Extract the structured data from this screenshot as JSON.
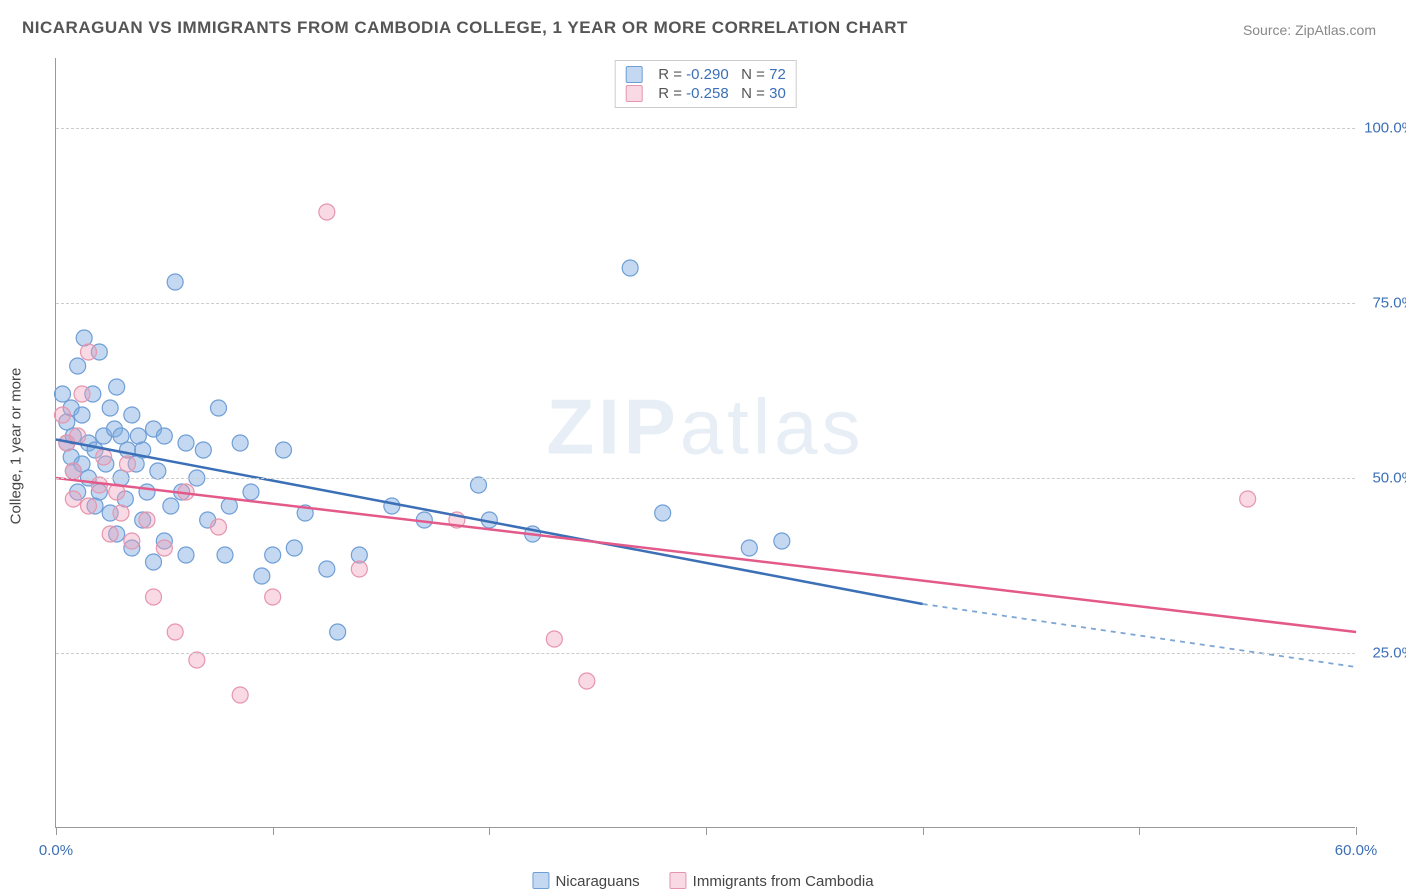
{
  "title": "NICARAGUAN VS IMMIGRANTS FROM CAMBODIA COLLEGE, 1 YEAR OR MORE CORRELATION CHART",
  "source": "Source: ZipAtlas.com",
  "ylabel": "College, 1 year or more",
  "watermark_prefix": "ZIP",
  "watermark_suffix": "atlas",
  "chart": {
    "type": "scatter",
    "xlim": [
      0,
      60
    ],
    "ylim": [
      0,
      110
    ],
    "xticks": [
      0,
      10,
      20,
      30,
      40,
      50,
      60
    ],
    "xtick_labels": [
      "0.0%",
      "",
      "",
      "",
      "",
      "",
      "60.0%"
    ],
    "gridlines_y": [
      25,
      50,
      75,
      100
    ],
    "ytick_labels": [
      "25.0%",
      "50.0%",
      "75.0%",
      "100.0%"
    ],
    "background_color": "#ffffff",
    "grid_color": "#cccccc",
    "grid_dash": "4,4",
    "axis_color": "#999999",
    "series": [
      {
        "key": "nicaraguans",
        "label": "Nicaraguans",
        "color_fill": "rgba(124,170,223,0.45)",
        "color_stroke": "#6f9ed6",
        "trend_color": "#3b6fb6",
        "trend_dash_color": "#7da6d4",
        "marker_radius": 8,
        "R": "-0.290",
        "N": "72",
        "trend": {
          "x1": 0,
          "y1": 55.5,
          "x2": 40,
          "y2": 32,
          "ext_x2": 60,
          "ext_y2": 23
        },
        "points": [
          [
            0.3,
            62
          ],
          [
            0.5,
            58
          ],
          [
            0.5,
            55
          ],
          [
            0.7,
            60
          ],
          [
            0.7,
            53
          ],
          [
            0.8,
            56
          ],
          [
            0.8,
            51
          ],
          [
            1.0,
            66
          ],
          [
            1.0,
            48
          ],
          [
            1.2,
            59
          ],
          [
            1.2,
            52
          ],
          [
            1.3,
            70
          ],
          [
            1.5,
            55
          ],
          [
            1.5,
            50
          ],
          [
            1.7,
            62
          ],
          [
            1.8,
            46
          ],
          [
            1.8,
            54
          ],
          [
            2.0,
            68
          ],
          [
            2.0,
            48
          ],
          [
            2.2,
            56
          ],
          [
            2.3,
            52
          ],
          [
            2.5,
            60
          ],
          [
            2.5,
            45
          ],
          [
            2.7,
            57
          ],
          [
            2.8,
            63
          ],
          [
            2.8,
            42
          ],
          [
            3.0,
            56
          ],
          [
            3.0,
            50
          ],
          [
            3.2,
            47
          ],
          [
            3.3,
            54
          ],
          [
            3.5,
            59
          ],
          [
            3.5,
            40
          ],
          [
            3.7,
            52
          ],
          [
            3.8,
            56
          ],
          [
            4.0,
            54
          ],
          [
            4.0,
            44
          ],
          [
            4.2,
            48
          ],
          [
            4.5,
            57
          ],
          [
            4.5,
            38
          ],
          [
            4.7,
            51
          ],
          [
            5.0,
            56
          ],
          [
            5.0,
            41
          ],
          [
            5.3,
            46
          ],
          [
            5.5,
            78
          ],
          [
            5.8,
            48
          ],
          [
            6.0,
            55
          ],
          [
            6.0,
            39
          ],
          [
            6.5,
            50
          ],
          [
            6.8,
            54
          ],
          [
            7.0,
            44
          ],
          [
            7.5,
            60
          ],
          [
            7.8,
            39
          ],
          [
            8.0,
            46
          ],
          [
            8.5,
            55
          ],
          [
            9.0,
            48
          ],
          [
            9.5,
            36
          ],
          [
            10.0,
            39
          ],
          [
            10.5,
            54
          ],
          [
            11.0,
            40
          ],
          [
            11.5,
            45
          ],
          [
            12.5,
            37
          ],
          [
            13.0,
            28
          ],
          [
            14.0,
            39
          ],
          [
            15.5,
            46
          ],
          [
            17.0,
            44
          ],
          [
            19.5,
            49
          ],
          [
            20.0,
            44
          ],
          [
            22.0,
            42
          ],
          [
            26.5,
            80
          ],
          [
            28.0,
            45
          ],
          [
            32.0,
            40
          ],
          [
            33.5,
            41
          ]
        ]
      },
      {
        "key": "cambodia",
        "label": "Immigrants from Cambodia",
        "color_fill": "rgba(240,160,185,0.40)",
        "color_stroke": "#e695ae",
        "trend_color": "#e35a8a",
        "trend_dash_color": "#e695ae",
        "marker_radius": 8,
        "R": "-0.258",
        "N": "30",
        "trend": {
          "x1": 0,
          "y1": 50,
          "x2": 60,
          "y2": 28,
          "ext_x2": 60,
          "ext_y2": 28
        },
        "points": [
          [
            0.3,
            59
          ],
          [
            0.5,
            55
          ],
          [
            0.8,
            51
          ],
          [
            0.8,
            47
          ],
          [
            1.0,
            56
          ],
          [
            1.2,
            62
          ],
          [
            1.5,
            46
          ],
          [
            1.5,
            68
          ],
          [
            2.0,
            49
          ],
          [
            2.2,
            53
          ],
          [
            2.5,
            42
          ],
          [
            2.8,
            48
          ],
          [
            3.0,
            45
          ],
          [
            3.3,
            52
          ],
          [
            3.5,
            41
          ],
          [
            4.2,
            44
          ],
          [
            4.5,
            33
          ],
          [
            5.0,
            40
          ],
          [
            5.5,
            28
          ],
          [
            6.0,
            48
          ],
          [
            6.5,
            24
          ],
          [
            7.5,
            43
          ],
          [
            8.5,
            19
          ],
          [
            10.0,
            33
          ],
          [
            12.5,
            88
          ],
          [
            14.0,
            37
          ],
          [
            18.5,
            44
          ],
          [
            23.0,
            27
          ],
          [
            24.5,
            21
          ],
          [
            55.0,
            47
          ]
        ]
      }
    ]
  },
  "legend_top": {
    "R_label": "R =",
    "N_label": "N ="
  },
  "legend_bottom": {
    "items": [
      "nicaraguans",
      "cambodia"
    ]
  }
}
